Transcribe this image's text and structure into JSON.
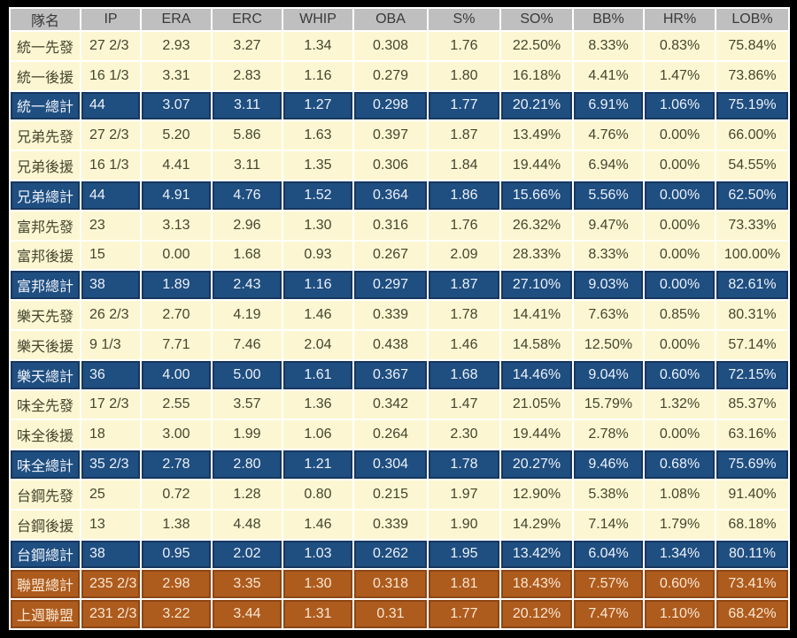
{
  "colors": {
    "frame_bg": "#000000",
    "grid": "#ffffff",
    "header_bg": "#bfbfbf",
    "header_text": "#3a3a3a",
    "row_bg": "#fcf7d2",
    "row_text": "#45452f",
    "total_bg": "#1f4e80",
    "total_text": "#edf2f9",
    "total_border": "#17375e",
    "league_bg": "#ae5b1e",
    "league_text": "#f9e8d2",
    "league_border": "#8c4715"
  },
  "chart_data": {
    "type": "table",
    "columns": [
      "隊名",
      "IP",
      "ERA",
      "ERC",
      "WHIP",
      "OBA",
      "S%",
      "SO%",
      "BB%",
      "HR%",
      "LOB%"
    ],
    "rows": [
      {
        "team": "統一先發",
        "row_type": "normal",
        "values": [
          "27 2/3",
          "2.93",
          "3.27",
          "1.34",
          "0.308",
          "1.76",
          "22.50%",
          "8.33%",
          "0.83%",
          "75.84%"
        ]
      },
      {
        "team": "統一後援",
        "row_type": "normal",
        "values": [
          "16 1/3",
          "3.31",
          "2.83",
          "1.16",
          "0.279",
          "1.80",
          "16.18%",
          "4.41%",
          "1.47%",
          "73.86%"
        ]
      },
      {
        "team": "統一總計",
        "row_type": "total",
        "values": [
          "44",
          "3.07",
          "3.11",
          "1.27",
          "0.298",
          "1.77",
          "20.21%",
          "6.91%",
          "1.06%",
          "75.19%"
        ]
      },
      {
        "team": "兄弟先發",
        "row_type": "normal",
        "values": [
          "27 2/3",
          "5.20",
          "5.86",
          "1.63",
          "0.397",
          "1.87",
          "13.49%",
          "4.76%",
          "0.00%",
          "66.00%"
        ]
      },
      {
        "team": "兄弟後援",
        "row_type": "normal",
        "values": [
          "16 1/3",
          "4.41",
          "3.11",
          "1.35",
          "0.306",
          "1.84",
          "19.44%",
          "6.94%",
          "0.00%",
          "54.55%"
        ]
      },
      {
        "team": "兄弟總計",
        "row_type": "total",
        "values": [
          "44",
          "4.91",
          "4.76",
          "1.52",
          "0.364",
          "1.86",
          "15.66%",
          "5.56%",
          "0.00%",
          "62.50%"
        ]
      },
      {
        "team": "富邦先發",
        "row_type": "normal",
        "values": [
          "23",
          "3.13",
          "2.96",
          "1.30",
          "0.316",
          "1.76",
          "26.32%",
          "9.47%",
          "0.00%",
          "73.33%"
        ]
      },
      {
        "team": "富邦後援",
        "row_type": "normal",
        "values": [
          "15",
          "0.00",
          "1.68",
          "0.93",
          "0.267",
          "2.09",
          "28.33%",
          "8.33%",
          "0.00%",
          "100.00%"
        ]
      },
      {
        "team": "富邦總計",
        "row_type": "total",
        "values": [
          "38",
          "1.89",
          "2.43",
          "1.16",
          "0.297",
          "1.87",
          "27.10%",
          "9.03%",
          "0.00%",
          "82.61%"
        ]
      },
      {
        "team": "樂天先發",
        "row_type": "normal",
        "values": [
          "26 2/3",
          "2.70",
          "4.19",
          "1.46",
          "0.339",
          "1.78",
          "14.41%",
          "7.63%",
          "0.85%",
          "80.31%"
        ]
      },
      {
        "team": "樂天後援",
        "row_type": "normal",
        "values": [
          "9 1/3",
          "7.71",
          "7.46",
          "2.04",
          "0.438",
          "1.46",
          "14.58%",
          "12.50%",
          "0.00%",
          "57.14%"
        ]
      },
      {
        "team": "樂天總計",
        "row_type": "total",
        "values": [
          "36",
          "4.00",
          "5.00",
          "1.61",
          "0.367",
          "1.68",
          "14.46%",
          "9.04%",
          "0.60%",
          "72.15%"
        ]
      },
      {
        "team": "味全先發",
        "row_type": "normal",
        "values": [
          "17 2/3",
          "2.55",
          "3.57",
          "1.36",
          "0.342",
          "1.47",
          "21.05%",
          "15.79%",
          "1.32%",
          "85.37%"
        ]
      },
      {
        "team": "味全後援",
        "row_type": "normal",
        "values": [
          "18",
          "3.00",
          "1.99",
          "1.06",
          "0.264",
          "2.30",
          "19.44%",
          "2.78%",
          "0.00%",
          "63.16%"
        ]
      },
      {
        "team": "味全總計",
        "row_type": "total",
        "values": [
          "35 2/3",
          "2.78",
          "2.80",
          "1.21",
          "0.304",
          "1.78",
          "20.27%",
          "9.46%",
          "0.68%",
          "75.69%"
        ]
      },
      {
        "team": "台鋼先發",
        "row_type": "normal",
        "values": [
          "25",
          "0.72",
          "1.28",
          "0.80",
          "0.215",
          "1.97",
          "12.90%",
          "5.38%",
          "1.08%",
          "91.40%"
        ]
      },
      {
        "team": "台鋼後援",
        "row_type": "normal",
        "values": [
          "13",
          "1.38",
          "4.48",
          "1.46",
          "0.339",
          "1.90",
          "14.29%",
          "7.14%",
          "1.79%",
          "68.18%"
        ]
      },
      {
        "team": "台鋼總計",
        "row_type": "total",
        "values": [
          "38",
          "0.95",
          "2.02",
          "1.03",
          "0.262",
          "1.95",
          "13.42%",
          "6.04%",
          "1.34%",
          "80.11%"
        ]
      },
      {
        "team": "聯盟總計",
        "row_type": "league",
        "values": [
          "235 2/3",
          "2.98",
          "3.35",
          "1.30",
          "0.318",
          "1.81",
          "18.43%",
          "7.57%",
          "0.60%",
          "73.41%"
        ]
      },
      {
        "team": "上週聯盟",
        "row_type": "league",
        "values": [
          "231 2/3",
          "3.22",
          "3.44",
          "1.31",
          "0.31",
          "1.77",
          "20.12%",
          "7.47%",
          "1.10%",
          "68.42%"
        ]
      }
    ]
  }
}
